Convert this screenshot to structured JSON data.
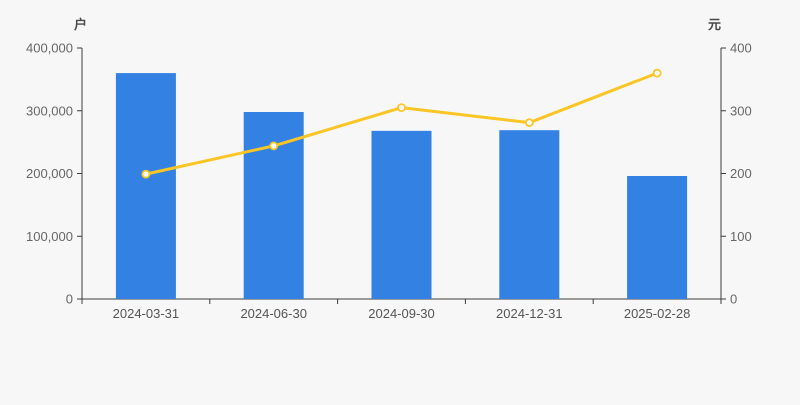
{
  "chart_data": {
    "type": "bar+line",
    "title": "",
    "categories": [
      "2024-03-31",
      "2024-06-30",
      "2024-09-30",
      "2024-12-31",
      "2025-02-28"
    ],
    "series": [
      {
        "name": "bars",
        "type": "bar",
        "axis": "left",
        "unit": "户",
        "color": "#3381E3",
        "values": [
          360000,
          298000,
          268000,
          269000,
          196000
        ]
      },
      {
        "name": "line",
        "type": "line",
        "axis": "right",
        "unit": "元",
        "color": "#FBC525",
        "marker": "hollow-circle",
        "values": [
          199,
          244,
          305,
          281,
          360
        ]
      }
    ],
    "left_axis": {
      "label": "户",
      "ticks": [
        "0",
        "100,000",
        "200,000",
        "300,000",
        "400,000"
      ],
      "min": 0,
      "max": 400000
    },
    "right_axis": {
      "label": "元",
      "ticks": [
        "0",
        "100",
        "200",
        "300",
        "400"
      ],
      "min": 0,
      "max": 400
    },
    "legend": "none",
    "grid": "off",
    "background": "#F7F7F7",
    "axis_line_color": "#3C3C3C",
    "tick_label_color": "#666666",
    "category_label_color": "#555555"
  }
}
